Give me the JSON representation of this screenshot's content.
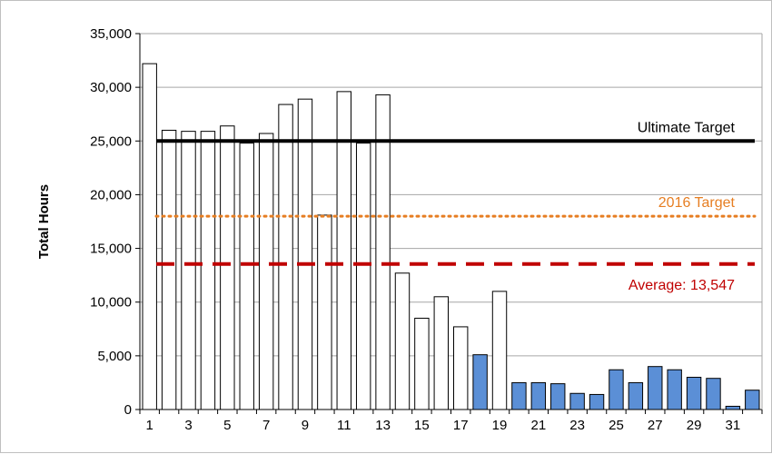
{
  "chart_data": {
    "type": "bar",
    "title": "",
    "xlabel": "",
    "ylabel": "Total Hours",
    "ylim": [
      0,
      35000
    ],
    "y_ticks": [
      0,
      5000,
      10000,
      15000,
      20000,
      25000,
      30000,
      35000
    ],
    "y_tick_labels": [
      "0",
      "5,000",
      "10,000",
      "15,000",
      "20,000",
      "25,000",
      "30,000",
      "35,000"
    ],
    "x_tick_labels": [
      "1",
      "3",
      "5",
      "7",
      "9",
      "11",
      "13",
      "15",
      "17",
      "19",
      "21",
      "23",
      "25",
      "27",
      "29",
      "31"
    ],
    "categories": [
      1,
      2,
      3,
      4,
      5,
      6,
      7,
      8,
      9,
      10,
      11,
      12,
      13,
      14,
      15,
      16,
      17,
      18,
      19,
      20,
      21,
      22,
      23,
      24,
      25,
      26,
      27,
      28,
      29,
      30,
      31,
      32
    ],
    "values": [
      32200,
      26000,
      25900,
      25900,
      26400,
      24800,
      25700,
      28400,
      28900,
      18100,
      29600,
      24800,
      29300,
      12700,
      8500,
      10500,
      7700,
      5100,
      11000,
      2500,
      2500,
      2400,
      1500,
      1400,
      3700,
      2500,
      4000,
      3700,
      3000,
      2900,
      300,
      1800
    ],
    "bar_fill": [
      "white",
      "white",
      "white",
      "white",
      "white",
      "white",
      "white",
      "white",
      "white",
      "white",
      "white",
      "white",
      "white",
      "white",
      "white",
      "white",
      "white",
      "blue",
      "white",
      "blue",
      "blue",
      "blue",
      "blue",
      "blue",
      "blue",
      "blue",
      "blue",
      "blue",
      "blue",
      "blue",
      "blue",
      "blue"
    ],
    "grid": true,
    "reference_lines": [
      {
        "label": "Ultimate Target",
        "value": 25000,
        "style": "solid",
        "color": "#000000"
      },
      {
        "label": "2016 Target",
        "value": 18000,
        "style": "dotted",
        "color": "#e67e22"
      },
      {
        "label": "Average: 13,547",
        "value": 13547,
        "style": "dashed",
        "color": "#c00000"
      }
    ]
  },
  "colors": {
    "bar_blue": "#5b8fd6",
    "bar_border": "#000000",
    "gridline": "#a6a6a6"
  }
}
